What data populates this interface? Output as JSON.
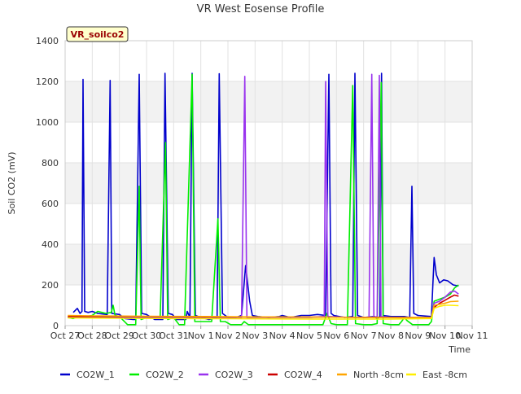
{
  "chart_data": {
    "type": "line",
    "title": "VR West Eosense Profile",
    "badge": "VR_soilco2",
    "xlabel": "Time",
    "ylabel": "Soil CO2 (mV)",
    "ylim": [
      0,
      1400
    ],
    "xlim": [
      0,
      15
    ],
    "y_ticks": [
      0,
      200,
      400,
      600,
      800,
      1000,
      1200,
      1400
    ],
    "x_ticks": [
      {
        "x": 0,
        "label": "Oct 27"
      },
      {
        "x": 1,
        "label": "Oct 28"
      },
      {
        "x": 2,
        "label": "Oct 29"
      },
      {
        "x": 3,
        "label": "Oct 30"
      },
      {
        "x": 4,
        "label": "Oct 31"
      },
      {
        "x": 5,
        "label": "Nov 1"
      },
      {
        "x": 6,
        "label": "Nov 2"
      },
      {
        "x": 7,
        "label": "Nov 3"
      },
      {
        "x": 8,
        "label": "Nov 4"
      },
      {
        "x": 9,
        "label": "Nov 5"
      },
      {
        "x": 10,
        "label": "Nov 6"
      },
      {
        "x": 11,
        "label": "Nov 7"
      },
      {
        "x": 12,
        "label": "Nov 8"
      },
      {
        "x": 13,
        "label": "Nov 9"
      },
      {
        "x": 14,
        "label": "Nov 10"
      },
      {
        "x": 15,
        "label": "Nov 11"
      }
    ],
    "grid": true,
    "legend_position": "bottom",
    "series": [
      {
        "name": "CO2W_1",
        "color": "#0000cc",
        "points": [
          [
            0.3,
            65
          ],
          [
            0.45,
            85
          ],
          [
            0.55,
            60
          ],
          [
            0.62,
            70
          ],
          [
            0.66,
            1210
          ],
          [
            0.72,
            70
          ],
          [
            0.85,
            65
          ],
          [
            1.0,
            70
          ],
          [
            1.2,
            60
          ],
          [
            1.55,
            55
          ],
          [
            1.66,
            1205
          ],
          [
            1.72,
            60
          ],
          [
            2.0,
            55
          ],
          [
            2.2,
            35
          ],
          [
            2.5,
            30
          ],
          [
            2.6,
            30
          ],
          [
            2.73,
            1235
          ],
          [
            2.82,
            60
          ],
          [
            3.0,
            55
          ],
          [
            3.3,
            30
          ],
          [
            3.6,
            30
          ],
          [
            3.68,
            1240
          ],
          [
            3.8,
            60
          ],
          [
            3.95,
            55
          ],
          [
            4.1,
            30
          ],
          [
            4.45,
            30
          ],
          [
            4.5,
            70
          ],
          [
            4.6,
            40
          ],
          [
            4.68,
            1240
          ],
          [
            4.8,
            50
          ],
          [
            5.0,
            40
          ],
          [
            5.3,
            30
          ],
          [
            5.6,
            40
          ],
          [
            5.68,
            1238
          ],
          [
            5.8,
            60
          ],
          [
            6.0,
            40
          ],
          [
            6.3,
            40
          ],
          [
            6.5,
            50
          ],
          [
            6.65,
            295
          ],
          [
            6.8,
            120
          ],
          [
            6.9,
            50
          ],
          [
            7.1,
            45
          ],
          [
            7.5,
            40
          ],
          [
            7.9,
            45
          ],
          [
            8.0,
            50
          ],
          [
            8.3,
            40
          ],
          [
            8.7,
            50
          ],
          [
            9.0,
            50
          ],
          [
            9.3,
            55
          ],
          [
            9.6,
            50
          ],
          [
            9.72,
            1235
          ],
          [
            9.8,
            60
          ],
          [
            9.9,
            50
          ],
          [
            10.3,
            40
          ],
          [
            10.6,
            45
          ],
          [
            10.68,
            1240
          ],
          [
            10.78,
            50
          ],
          [
            11.0,
            40
          ],
          [
            11.4,
            45
          ],
          [
            11.5,
            35
          ],
          [
            11.6,
            45
          ],
          [
            11.66,
            1240
          ],
          [
            11.72,
            50
          ],
          [
            12.0,
            45
          ],
          [
            12.5,
            45
          ],
          [
            12.7,
            40
          ],
          [
            12.78,
            685
          ],
          [
            12.85,
            60
          ],
          [
            13.0,
            50
          ],
          [
            13.5,
            45
          ],
          [
            13.55,
            200
          ],
          [
            13.6,
            335
          ],
          [
            13.68,
            250
          ],
          [
            13.8,
            210
          ],
          [
            13.95,
            225
          ],
          [
            14.1,
            220
          ],
          [
            14.3,
            200
          ],
          [
            14.5,
            195
          ]
        ]
      },
      {
        "name": "CO2W_2",
        "color": "#00ee00",
        "points": [
          [
            0.1,
            40
          ],
          [
            0.3,
            35
          ],
          [
            0.5,
            45
          ],
          [
            0.65,
            40
          ],
          [
            0.75,
            45
          ],
          [
            1.0,
            50
          ],
          [
            1.2,
            70
          ],
          [
            1.5,
            60
          ],
          [
            1.7,
            65
          ],
          [
            1.77,
            100
          ],
          [
            1.84,
            50
          ],
          [
            2.0,
            45
          ],
          [
            2.3,
            5
          ],
          [
            2.6,
            5
          ],
          [
            2.73,
            685
          ],
          [
            2.8,
            30
          ],
          [
            3.0,
            40
          ],
          [
            3.5,
            35
          ],
          [
            3.7,
            900
          ],
          [
            3.78,
            30
          ],
          [
            4.0,
            40
          ],
          [
            4.2,
            5
          ],
          [
            4.4,
            5
          ],
          [
            4.68,
            1235
          ],
          [
            4.78,
            20
          ],
          [
            5.0,
            20
          ],
          [
            5.4,
            20
          ],
          [
            5.63,
            525
          ],
          [
            5.72,
            20
          ],
          [
            5.9,
            20
          ],
          [
            6.1,
            5
          ],
          [
            6.5,
            5
          ],
          [
            6.6,
            20
          ],
          [
            6.75,
            5
          ],
          [
            7.0,
            5
          ],
          [
            7.5,
            5
          ],
          [
            8.0,
            5
          ],
          [
            8.5,
            5
          ],
          [
            9.0,
            5
          ],
          [
            9.5,
            5
          ],
          [
            9.65,
            60
          ],
          [
            9.8,
            10
          ],
          [
            10.0,
            5
          ],
          [
            10.4,
            5
          ],
          [
            10.6,
            1180
          ],
          [
            10.7,
            10
          ],
          [
            11.0,
            5
          ],
          [
            11.3,
            5
          ],
          [
            11.5,
            10
          ],
          [
            11.65,
            1195
          ],
          [
            11.72,
            10
          ],
          [
            12.0,
            5
          ],
          [
            12.3,
            5
          ],
          [
            12.4,
            20
          ],
          [
            12.5,
            40
          ],
          [
            12.6,
            25
          ],
          [
            12.8,
            5
          ],
          [
            13.0,
            5
          ],
          [
            13.4,
            5
          ],
          [
            13.5,
            20
          ],
          [
            13.6,
            120
          ],
          [
            13.8,
            130
          ],
          [
            14.0,
            140
          ],
          [
            14.2,
            155
          ],
          [
            14.35,
            185
          ],
          [
            14.5,
            200
          ]
        ]
      },
      {
        "name": "CO2W_3",
        "color": "#9933ee",
        "points": [
          [
            0.1,
            40
          ],
          [
            3.0,
            40
          ],
          [
            6.0,
            40
          ],
          [
            6.5,
            40
          ],
          [
            6.62,
            1225
          ],
          [
            6.7,
            40
          ],
          [
            7.0,
            40
          ],
          [
            9.0,
            40
          ],
          [
            9.55,
            45
          ],
          [
            9.6,
            1200
          ],
          [
            9.68,
            45
          ],
          [
            10.5,
            40
          ],
          [
            11.2,
            40
          ],
          [
            11.3,
            1235
          ],
          [
            11.38,
            40
          ],
          [
            11.5,
            45
          ],
          [
            11.58,
            1230
          ],
          [
            11.64,
            45
          ],
          [
            12.0,
            40
          ],
          [
            13.0,
            40
          ],
          [
            13.5,
            40
          ],
          [
            13.6,
            110
          ],
          [
            13.8,
            120
          ],
          [
            14.0,
            140
          ],
          [
            14.2,
            165
          ],
          [
            14.35,
            170
          ],
          [
            14.5,
            155
          ]
        ]
      },
      {
        "name": "CO2W_4",
        "color": "#cc0000",
        "points": [
          [
            0.1,
            45
          ],
          [
            3.0,
            45
          ],
          [
            6.0,
            42
          ],
          [
            9.0,
            42
          ],
          [
            12.0,
            40
          ],
          [
            13.5,
            40
          ],
          [
            13.6,
            90
          ],
          [
            13.8,
            110
          ],
          [
            14.0,
            125
          ],
          [
            14.2,
            140
          ],
          [
            14.35,
            150
          ],
          [
            14.5,
            145
          ]
        ]
      },
      {
        "name": "North -8cm",
        "color": "#ffa500",
        "points": [
          [
            0.1,
            50
          ],
          [
            1.0,
            48
          ],
          [
            3.0,
            46
          ],
          [
            5.0,
            45
          ],
          [
            7.0,
            43
          ],
          [
            9.0,
            42
          ],
          [
            11.0,
            40
          ],
          [
            13.5,
            40
          ],
          [
            13.6,
            100
          ],
          [
            13.8,
            105
          ],
          [
            14.0,
            110
          ],
          [
            14.2,
            118
          ],
          [
            14.5,
            120
          ]
        ]
      },
      {
        "name": "East -8cm",
        "color": "#ffee00",
        "points": [
          [
            0.1,
            38
          ],
          [
            2.0,
            36
          ],
          [
            4.0,
            35
          ],
          [
            6.0,
            34
          ],
          [
            8.0,
            33
          ],
          [
            10.0,
            32
          ],
          [
            12.0,
            32
          ],
          [
            13.5,
            35
          ],
          [
            13.6,
            85
          ],
          [
            13.8,
            95
          ],
          [
            14.0,
            100
          ],
          [
            14.2,
            100
          ],
          [
            14.5,
            98
          ]
        ]
      }
    ]
  }
}
